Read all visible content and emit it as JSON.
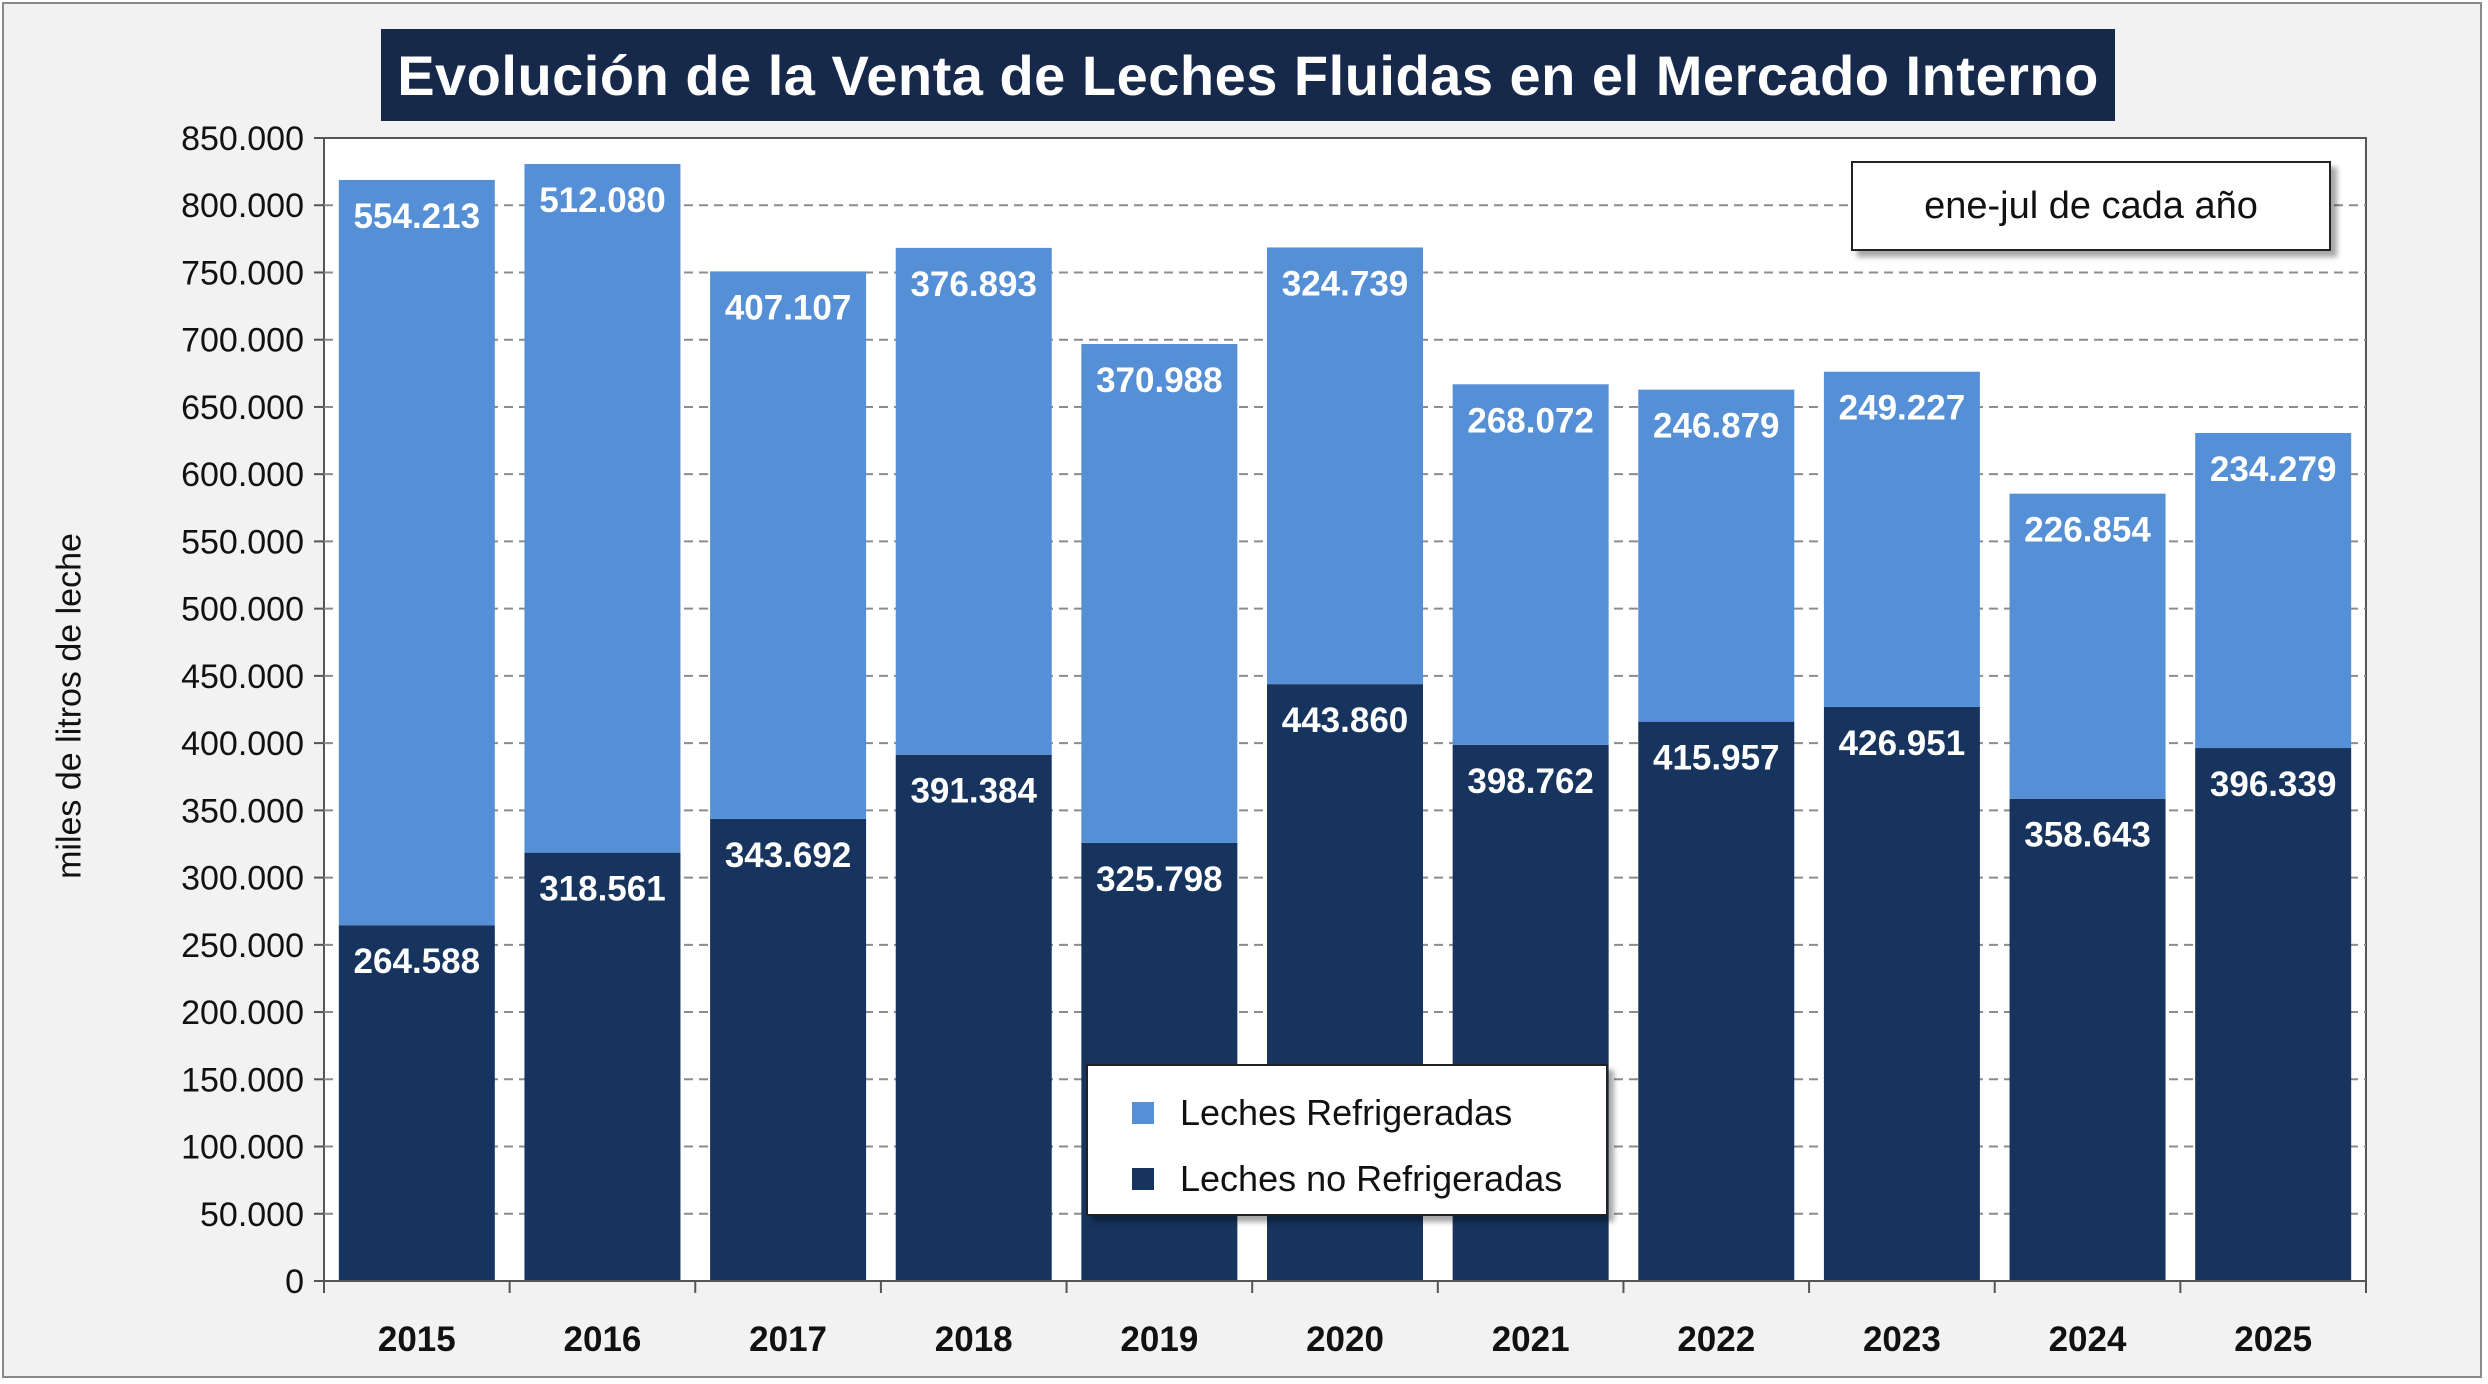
{
  "colors": {
    "refrigeradas": "#5590d6",
    "no_refrigeradas": "#17345e",
    "title_bg": "#17294a",
    "plot_bg": "#ffffff",
    "frame_bg": "#f2f2f2"
  },
  "note": "ene-jul de cada año",
  "chart_data": {
    "type": "bar",
    "stacked": true,
    "title": "Evolución  de la Venta de Leches Fluidas  en el Mercado  Interno",
    "ylabel": "miles de litros de leche",
    "xlabel": "",
    "ylim": [
      0,
      850000
    ],
    "ytick_step": 50000,
    "ytick_labels": [
      "0",
      "50.000",
      "100.000",
      "150.000",
      "200.000",
      "250.000",
      "300.000",
      "350.000",
      "400.000",
      "450.000",
      "500.000",
      "550.000",
      "600.000",
      "650.000",
      "700.000",
      "750.000",
      "800.000",
      "850.000"
    ],
    "grid": "horizontal dashed",
    "legend_position": "bottom-center",
    "categories": [
      "2015",
      "2016",
      "2017",
      "2018",
      "2019",
      "2020",
      "2021",
      "2022",
      "2023",
      "2024",
      "2025"
    ],
    "series": [
      {
        "name": "Leches no Refrigeradas",
        "values": [
          264588,
          318561,
          343692,
          391384,
          325798,
          443860,
          398762,
          415957,
          426951,
          358643,
          396339
        ],
        "labels": [
          "264.588",
          "318.561",
          "343.692",
          "391.384",
          "325.798",
          "443.860",
          "398.762",
          "415.957",
          "426.951",
          "358.643",
          "396.339"
        ]
      },
      {
        "name": "Leches Refrigeradas",
        "values": [
          554213,
          512080,
          407107,
          376893,
          370988,
          324739,
          268072,
          246879,
          249227,
          226854,
          234279
        ],
        "labels": [
          "554.213",
          "512.080",
          "407.107",
          "376.893",
          "370.988",
          "324.739",
          "268.072",
          "246.879",
          "249.227",
          "226.854",
          "234.279"
        ]
      }
    ]
  }
}
